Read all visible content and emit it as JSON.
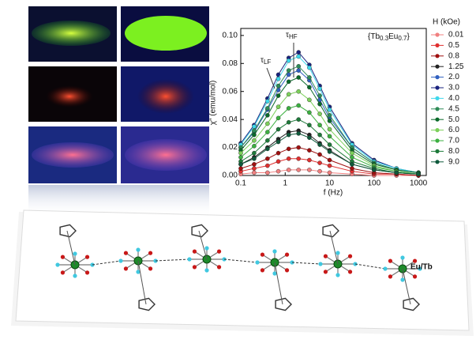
{
  "chart_data": {
    "type": "line",
    "x_label": "f (Hz)",
    "y_label": "χ″ (emu/mol)",
    "x": [
      0.1,
      0.2,
      0.4,
      0.7,
      1.2,
      2,
      3.5,
      6,
      10,
      32,
      100,
      320,
      1000
    ],
    "xlim": [
      0.1,
      1500
    ],
    "xticks": [
      0.1,
      1,
      10,
      100,
      1000
    ],
    "xscale": "log",
    "ylim": [
      0,
      0.105
    ],
    "yticks": [
      {
        "value": 0,
        "label": "0.00"
      },
      {
        "value": 0.02,
        "label": "0.02"
      },
      {
        "value": 0.04,
        "label": "0.04"
      },
      {
        "value": 0.06,
        "label": "0.06"
      },
      {
        "value": 0.08,
        "label": "0.08"
      },
      {
        "value": 0.1,
        "label": "0.10"
      }
    ],
    "legend_title": "H (kOe)",
    "legend": "right",
    "annotations": [
      [
        "τ",
        "HF"
      ],
      [
        "τ",
        "LF"
      ],
      [
        "{Tb",
        "0.3",
        "Eu",
        "0.7",
        "}"
      ]
    ],
    "series": [
      {
        "name": "0.01",
        "color": "#f08080",
        "values": [
          0.001,
          0.002,
          0.002,
          0.003,
          0.004,
          0.004,
          0.004,
          0.003,
          0.002,
          0.001,
          0.0,
          0.0,
          0.0
        ]
      },
      {
        "name": "0.5",
        "color": "#e03030",
        "values": [
          0.003,
          0.005,
          0.007,
          0.01,
          0.012,
          0.012,
          0.011,
          0.009,
          0.007,
          0.003,
          0.001,
          0.001,
          0.0
        ]
      },
      {
        "name": "0.8",
        "color": "#a01010",
        "values": [
          0.005,
          0.008,
          0.012,
          0.016,
          0.019,
          0.02,
          0.018,
          0.015,
          0.011,
          0.005,
          0.002,
          0.001,
          0.0
        ]
      },
      {
        "name": "1.25",
        "color": "#222222",
        "values": [
          0.008,
          0.013,
          0.02,
          0.026,
          0.031,
          0.032,
          0.029,
          0.023,
          0.018,
          0.008,
          0.004,
          0.002,
          0.001
        ]
      },
      {
        "name": "2.0",
        "color": "#3060c0",
        "values": [
          0.02,
          0.031,
          0.047,
          0.061,
          0.072,
          0.075,
          0.068,
          0.054,
          0.041,
          0.02,
          0.009,
          0.004,
          0.002
        ]
      },
      {
        "name": "3.0",
        "color": "#1a237e",
        "values": [
          0.023,
          0.036,
          0.055,
          0.072,
          0.084,
          0.088,
          0.079,
          0.064,
          0.049,
          0.023,
          0.011,
          0.005,
          0.002
        ]
      },
      {
        "name": "4.0",
        "color": "#40d8ec",
        "values": [
          0.022,
          0.035,
          0.053,
          0.069,
          0.082,
          0.085,
          0.077,
          0.062,
          0.047,
          0.022,
          0.01,
          0.005,
          0.002
        ]
      },
      {
        "name": "4.5",
        "color": "#2e8b57",
        "values": [
          0.02,
          0.032,
          0.048,
          0.064,
          0.075,
          0.078,
          0.07,
          0.057,
          0.043,
          0.02,
          0.009,
          0.004,
          0.002
        ]
      },
      {
        "name": "5.0",
        "color": "#0a6a2a",
        "values": [
          0.018,
          0.029,
          0.043,
          0.057,
          0.067,
          0.07,
          0.063,
          0.051,
          0.039,
          0.018,
          0.008,
          0.004,
          0.002
        ]
      },
      {
        "name": "6.0",
        "color": "#7cd05a",
        "values": [
          0.016,
          0.025,
          0.037,
          0.049,
          0.058,
          0.06,
          0.054,
          0.044,
          0.033,
          0.016,
          0.007,
          0.003,
          0.001
        ]
      },
      {
        "name": "7.0",
        "color": "#3cb040",
        "values": [
          0.013,
          0.021,
          0.031,
          0.041,
          0.048,
          0.05,
          0.045,
          0.036,
          0.028,
          0.013,
          0.006,
          0.003,
          0.001
        ]
      },
      {
        "name": "8.0",
        "color": "#1e7a3a",
        "values": [
          0.01,
          0.016,
          0.025,
          0.033,
          0.038,
          0.04,
          0.036,
          0.029,
          0.022,
          0.01,
          0.005,
          0.002,
          0.001
        ]
      },
      {
        "name": "9.0",
        "color": "#0f5a3c",
        "values": [
          0.008,
          0.012,
          0.019,
          0.024,
          0.029,
          0.03,
          0.027,
          0.022,
          0.017,
          0.008,
          0.004,
          0.002,
          0.001
        ]
      }
    ]
  },
  "structure_label": "Eu/Tb"
}
